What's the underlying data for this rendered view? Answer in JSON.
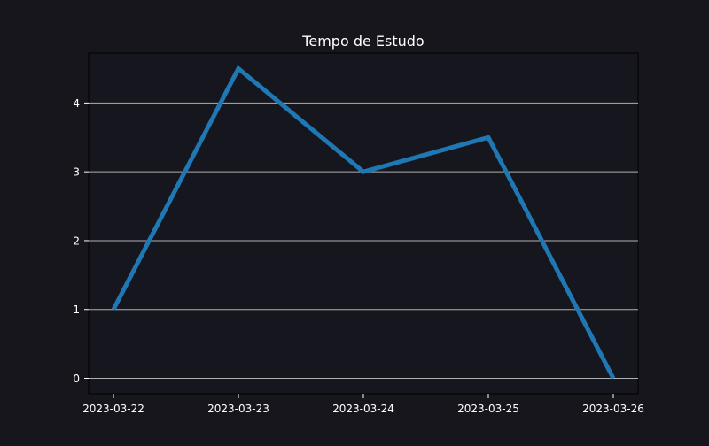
{
  "chart_data": {
    "type": "line",
    "title": "Tempo de Estudo",
    "xlabel": "",
    "ylabel": "",
    "x": [
      "2023-03-22",
      "2023-03-23",
      "2023-03-24",
      "2023-03-25",
      "2023-03-26"
    ],
    "series": [
      {
        "values": [
          1,
          4.5,
          3,
          3.5,
          0
        ]
      }
    ],
    "ylim": [
      -0.225,
      4.725
    ],
    "yticks": [
      0,
      1,
      2,
      3,
      4
    ],
    "grid": {
      "horizontal": true,
      "vertical": false
    },
    "colors": {
      "background": "#16161c",
      "plot_background": "#16171e",
      "line": "#1f77b4",
      "grid": "#b0b0b0",
      "text": "#ffffff",
      "axis": "#ffffff"
    }
  }
}
